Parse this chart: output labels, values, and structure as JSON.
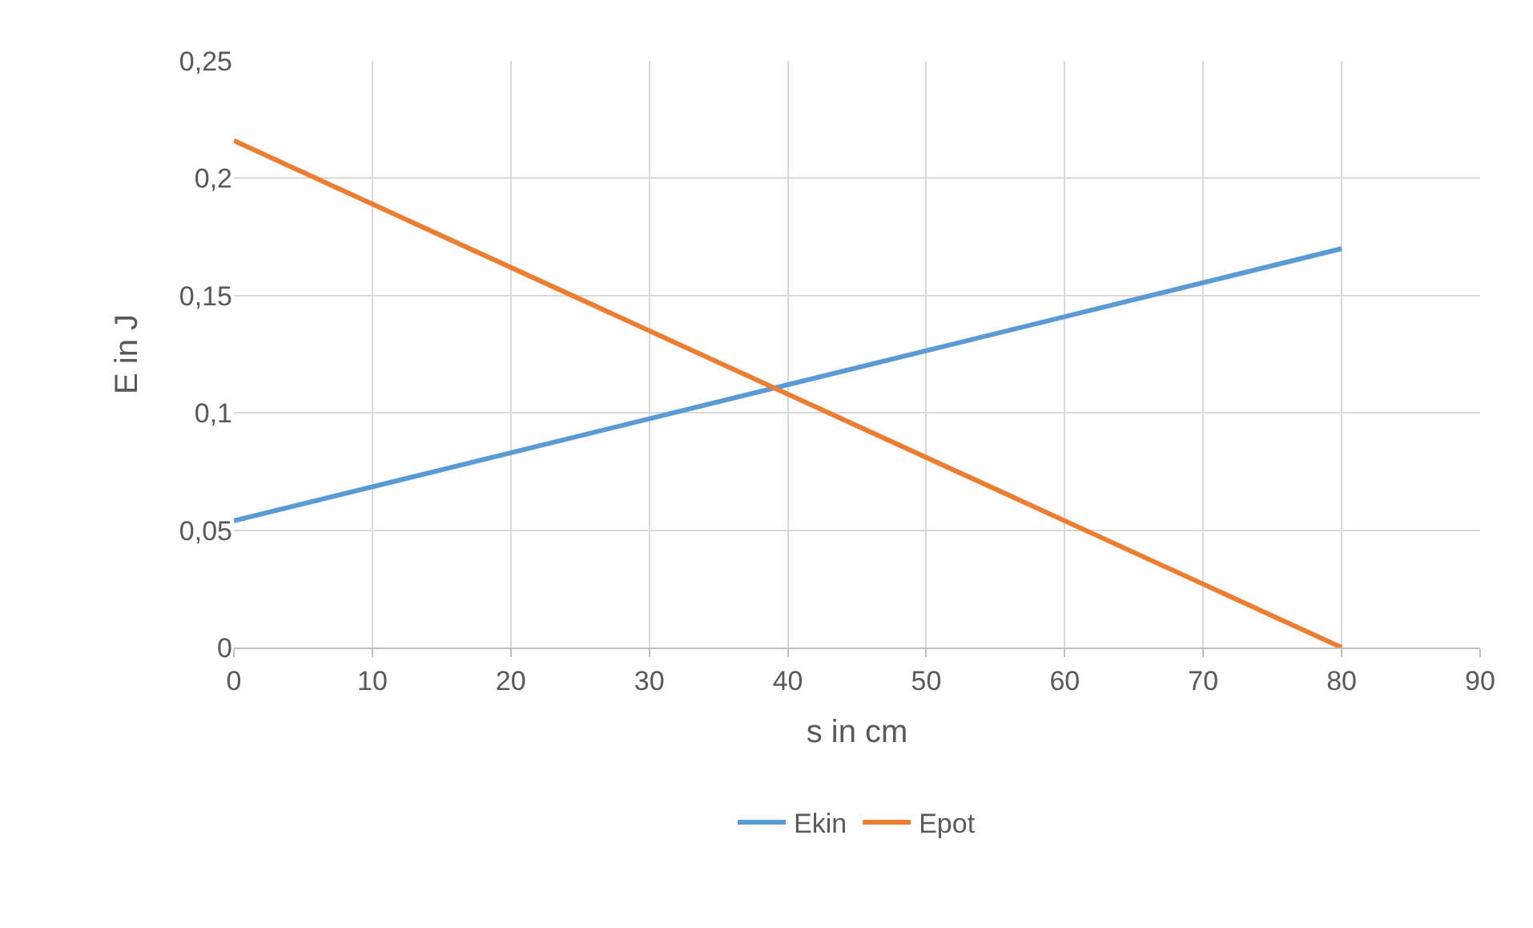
{
  "chart_data": {
    "type": "line",
    "xlabel": "s in cm",
    "ylabel": "E in J",
    "x": [
      0,
      80
    ],
    "series": [
      {
        "name": "Ekin",
        "color": "#5b9bd5",
        "values": [
          0.054,
          0.17
        ]
      },
      {
        "name": "Epot",
        "color": "#ed7d31",
        "values": [
          0.216,
          0
        ]
      }
    ],
    "xlim": [
      0,
      90
    ],
    "xticks": [
      0,
      10,
      20,
      30,
      40,
      50,
      60,
      70,
      80,
      90
    ],
    "ylim": [
      0,
      0.25
    ],
    "yticks": [
      0,
      {
        "value": 0.05,
        "label": "0,05"
      },
      {
        "value": 0.1,
        "label": "0,1"
      },
      {
        "value": 0.15,
        "label": "0,15"
      },
      {
        "value": 0.2,
        "label": "0,2"
      },
      {
        "value": 0.25,
        "label": "0,25"
      }
    ],
    "grid": true,
    "legend": "bottom",
    "marker": "none",
    "line_style": "solid"
  }
}
